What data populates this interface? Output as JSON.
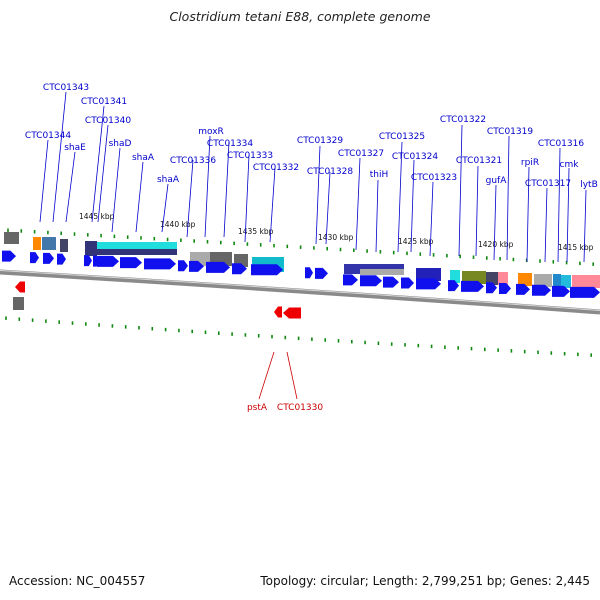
{
  "title": "Clostridium tetani E88, complete genome",
  "footer": {
    "accession": "Accession: NC_004557",
    "topology": "Topology: circular; Length: 2,799,251 bp; Genes: 2,445"
  },
  "colors": {
    "forward_gene": "#1010ee",
    "reverse_gene": "#ee0000",
    "forward_label": "#0000cc",
    "reverse_label": "#cc0000",
    "tick": "#118811",
    "backbone": "#888888"
  },
  "scale_labels": [
    "1445 kbp",
    "1440 kbp",
    "1435 kbp",
    "1430 kbp",
    "1425 kbp",
    "1420 kbp",
    "1415 kbp"
  ],
  "forward_gene_labels": [
    "CTC01343",
    "CTC01341",
    "CTC01340",
    "CTC01344",
    "shaE",
    "shaD",
    "shaA",
    "shaA",
    "CTC01336",
    "moxR",
    "CTC01334",
    "CTC01333",
    "CTC01332",
    "CTC01329",
    "CTC01328",
    "CTC01327",
    "CTC01325",
    "thiH",
    "CTC01324",
    "CTC01323",
    "CTC01322",
    "CTC01321",
    "gufA",
    "CTC01319",
    "rpiR",
    "CTC01317",
    "CTC01316",
    "cmk",
    "lytB"
  ],
  "reverse_gene_labels": [
    "pstA",
    "CTC01330"
  ]
}
